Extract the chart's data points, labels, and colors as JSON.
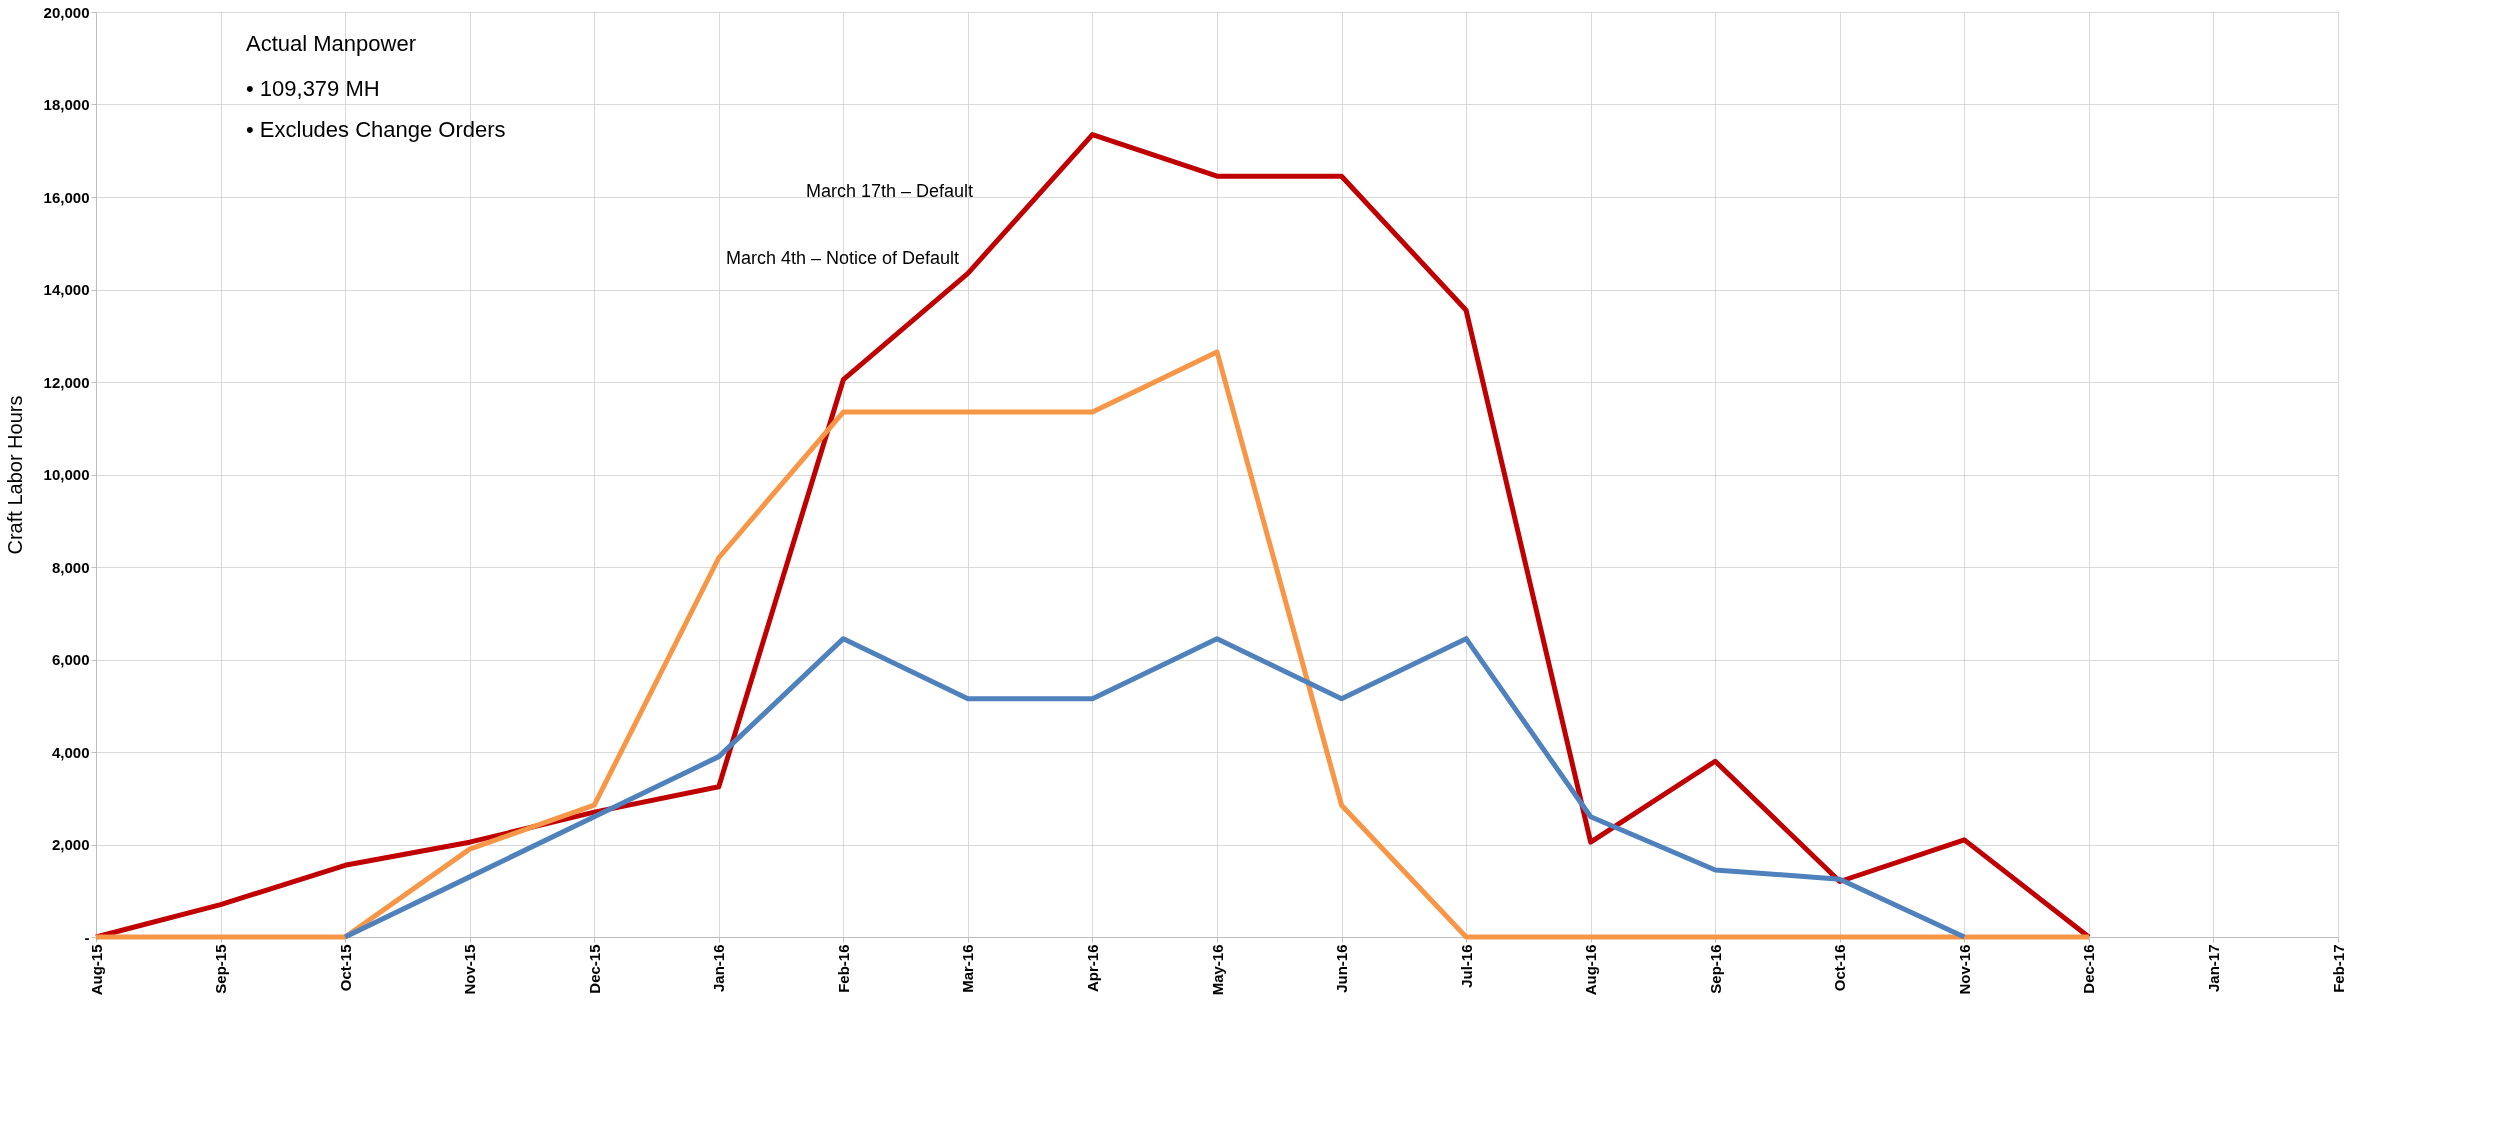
{
  "chart_data": {
    "type": "line",
    "ylabel": "Craft Labor Hours",
    "categories": [
      "Aug-15",
      "Sep-15",
      "Oct-15",
      "Nov-15",
      "Dec-15",
      "Jan-16",
      "Feb-16",
      "Mar-16",
      "Apr-16",
      "May-16",
      "Jun-16",
      "Jul-16",
      "Aug-16",
      "Sep-16",
      "Oct-16",
      "Nov-16",
      "Dec-16",
      "Jan-17",
      "Feb-17"
    ],
    "series": [
      {
        "color": "#c00000",
        "values": [
          0,
          700,
          1550,
          2050,
          2700,
          3250,
          12050,
          14350,
          17350,
          16450,
          16450,
          13550,
          2050,
          3800,
          1200,
          2100,
          0,
          null,
          null
        ]
      },
      {
        "color": "#f79646",
        "values": [
          0,
          0,
          0,
          1900,
          2850,
          8200,
          11350,
          11350,
          11350,
          12650,
          2850,
          0,
          0,
          0,
          0,
          0,
          0,
          null,
          null
        ]
      },
      {
        "color": "#4f81bd",
        "values": [
          null,
          null,
          0,
          1300,
          2600,
          3900,
          6450,
          5150,
          5150,
          6450,
          5150,
          6450,
          2600,
          1450,
          1250,
          0,
          null,
          null,
          null
        ]
      }
    ],
    "ylim": [
      0,
      20000
    ],
    "yticks": [
      {
        "value": 0,
        "label": "-"
      },
      {
        "value": 2000,
        "label": "2,000"
      },
      {
        "value": 4000,
        "label": "4,000"
      },
      {
        "value": 6000,
        "label": "6,000"
      },
      {
        "value": 8000,
        "label": "8,000"
      },
      {
        "value": 10000,
        "label": "10,000"
      },
      {
        "value": 12000,
        "label": "12,000"
      },
      {
        "value": 14000,
        "label": "14,000"
      },
      {
        "value": 16000,
        "label": "16,000"
      },
      {
        "value": 18000,
        "label": "18,000"
      },
      {
        "value": 20000,
        "label": "20,000"
      }
    ],
    "grid": true,
    "legend": false,
    "annotations": [
      "Actual Manpower",
      "•      109,379 MH",
      "•      Excludes Change Orders",
      "March 17th – Default",
      "March 4th – Notice of Default"
    ]
  }
}
